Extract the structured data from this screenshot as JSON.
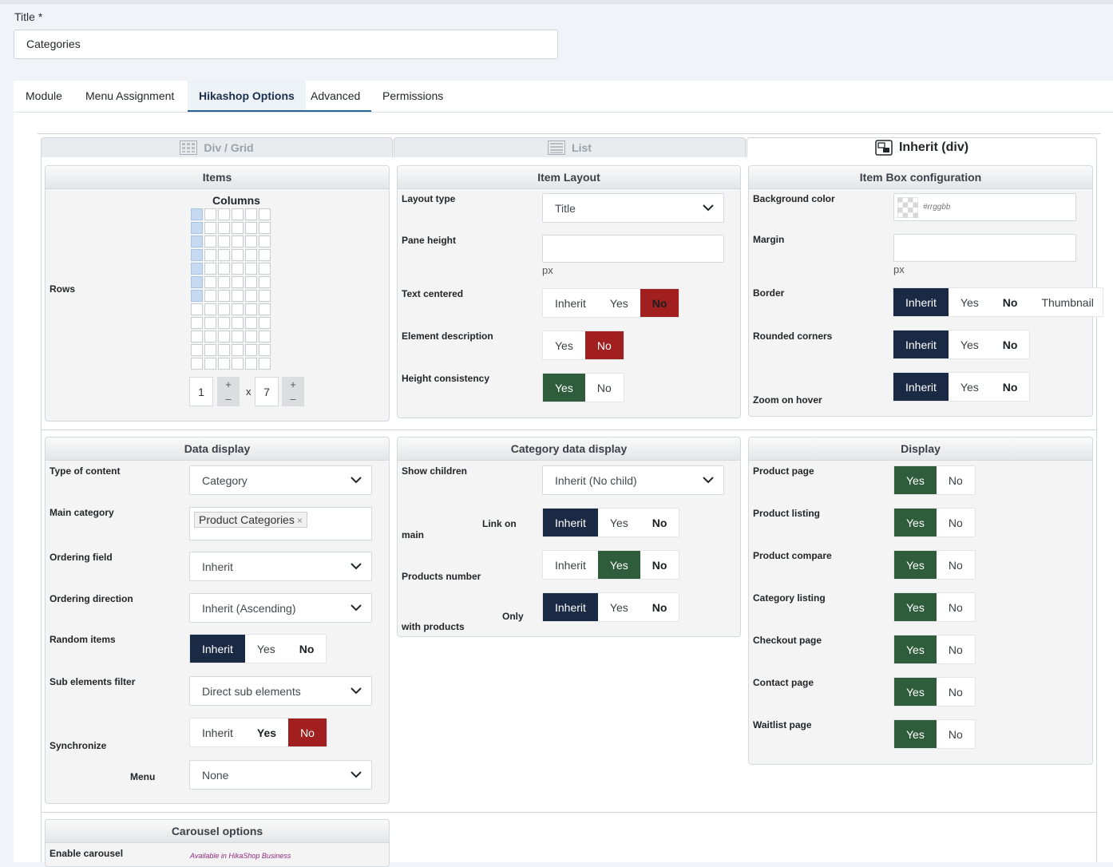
{
  "title_field": {
    "label": "Title *",
    "value": "Categories"
  },
  "tabs": [
    {
      "label": "Module"
    },
    {
      "label": "Menu Assignment"
    },
    {
      "label": "Hikashop Options"
    },
    {
      "label": "Advanced"
    },
    {
      "label": "Permissions"
    }
  ],
  "view_tabs": [
    {
      "label": "Div / Grid"
    },
    {
      "label": "List"
    },
    {
      "label": "Inherit (div)"
    }
  ],
  "items": {
    "title": "Items",
    "columns_label": "Columns",
    "rows_label": "Rows",
    "columns_value": "1",
    "times": "x",
    "rows_value": "7"
  },
  "item_layout": {
    "title": "Item Layout",
    "layout_type": {
      "label": "Layout type",
      "value": "Title"
    },
    "pane_height": {
      "label": "Pane height",
      "unit": "px"
    },
    "text_centered": {
      "label": "Text centered",
      "options": [
        "Inherit",
        "Yes",
        "No"
      ]
    },
    "element_description": {
      "label": "Element description",
      "options": [
        "Yes",
        "No"
      ]
    },
    "height_consistency": {
      "label": "Height consistency",
      "options": [
        "Yes",
        "No"
      ]
    }
  },
  "item_box": {
    "title": "Item Box configuration",
    "background_color": {
      "label": "Background color",
      "placeholder": "#rrggbb"
    },
    "margin": {
      "label": "Margin",
      "unit": "px"
    },
    "border": {
      "label": "Border",
      "options": [
        "Inherit",
        "Yes",
        "No",
        "Thumbnail"
      ]
    },
    "rounded_corners": {
      "label": "Rounded corners",
      "options": [
        "Inherit",
        "Yes",
        "No"
      ]
    },
    "zoom_on_hover": {
      "label": "Zoom on hover",
      "options": [
        "Inherit",
        "Yes",
        "No"
      ]
    }
  },
  "data_display": {
    "title": "Data display",
    "type_of_content": {
      "label": "Type of content",
      "value": "Category"
    },
    "main_category": {
      "label": "Main category",
      "tag": "Product Categories",
      "remove": "×"
    },
    "ordering_field": {
      "label": "Ordering field",
      "value": "Inherit"
    },
    "ordering_direction": {
      "label": "Ordering direction",
      "value": "Inherit (Ascending)"
    },
    "random_items": {
      "label": "Random items",
      "options": [
        "Inherit",
        "Yes",
        "No"
      ]
    },
    "sub_elements_filter": {
      "label": "Sub elements filter",
      "value": "Direct sub elements"
    },
    "synchronize": {
      "label": "Synchronize",
      "options": [
        "Inherit",
        "Yes",
        "No"
      ]
    },
    "menu": {
      "label": "Menu",
      "value": "None"
    }
  },
  "category_data_display": {
    "title": "Category data display",
    "show_children": {
      "label": "Show children",
      "value": "Inherit (No child)"
    },
    "link_on_main": {
      "label_a": "Link on",
      "label_b": "main",
      "options": [
        "Inherit",
        "Yes",
        "No"
      ]
    },
    "products_number": {
      "label": "Products number",
      "options": [
        "Inherit",
        "Yes",
        "No"
      ]
    },
    "only_with_products": {
      "label_a": "Only",
      "label_b": "with products",
      "options": [
        "Inherit",
        "Yes",
        "No"
      ]
    }
  },
  "display": {
    "title": "Display",
    "rows": [
      {
        "label": "Product page",
        "options": [
          "Yes",
          "No"
        ]
      },
      {
        "label": "Product listing",
        "options": [
          "Yes",
          "No"
        ]
      },
      {
        "label": "Product compare",
        "options": [
          "Yes",
          "No"
        ]
      },
      {
        "label": "Category listing",
        "options": [
          "Yes",
          "No"
        ]
      },
      {
        "label": "Checkout page",
        "options": [
          "Yes",
          "No"
        ]
      },
      {
        "label": "Contact page",
        "options": [
          "Yes",
          "No"
        ]
      },
      {
        "label": "Waitlist page",
        "options": [
          "Yes",
          "No"
        ]
      }
    ]
  },
  "carousel": {
    "title": "Carousel options",
    "enable_carousel": {
      "label": "Enable carousel",
      "note": "Available in HikaShop Business"
    }
  },
  "colors": {
    "navy": "#1b2a44",
    "red": "#a11f1f",
    "green": "#2f5d3c",
    "accent": "#2d6393"
  }
}
